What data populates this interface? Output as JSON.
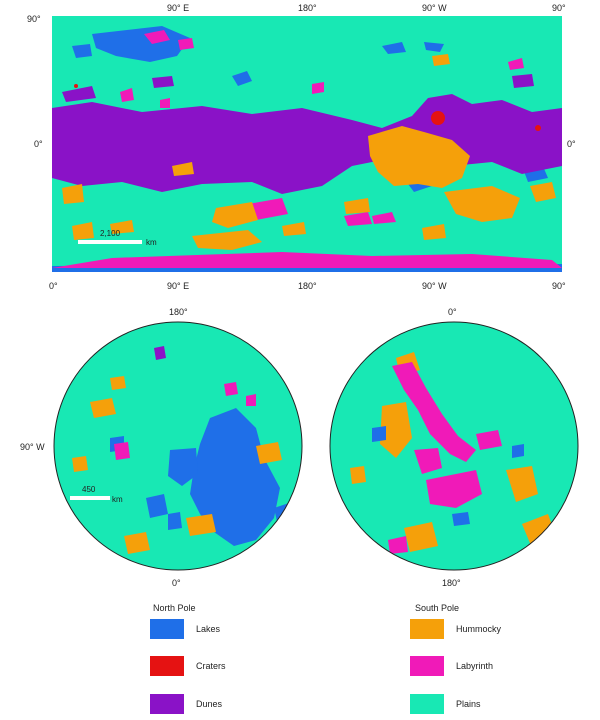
{
  "colors": {
    "lakes": "#1f6fe8",
    "craters": "#e51212",
    "dunes": "#8a12c7",
    "hummocky": "#f5a00a",
    "labyrinth": "#f01ab8",
    "plains": "#18e8b4"
  },
  "equirect_map": {
    "top_labels": [
      "90° E",
      "180°",
      "90° W",
      "90°"
    ],
    "bottom_labels": [
      "0°",
      "90° E",
      "180°",
      "90° W",
      "90°"
    ],
    "left_labels": [
      "90°",
      "0°"
    ],
    "right_labels": [
      "0°"
    ],
    "scale_value": "2,100",
    "scale_unit": "km"
  },
  "north_pole_map": {
    "top_label": "180°",
    "bottom_label": "0°",
    "left_label": "90° W",
    "scale_value": "450",
    "scale_unit": "km"
  },
  "south_pole_map": {
    "top_label": "0°",
    "bottom_label": "180°"
  },
  "legend": {
    "north_title": "North Pole",
    "south_title": "South Pole",
    "items": [
      {
        "label": "Lakes",
        "color": "#1f6fe8"
      },
      {
        "label": "Craters",
        "color": "#e51212"
      },
      {
        "label": "Dunes",
        "color": "#8a12c7"
      },
      {
        "label": "Hummocky",
        "color": "#f5a00a"
      },
      {
        "label": "Labyrinth",
        "color": "#f01ab8"
      },
      {
        "label": "Plains",
        "color": "#18e8b4"
      }
    ]
  }
}
